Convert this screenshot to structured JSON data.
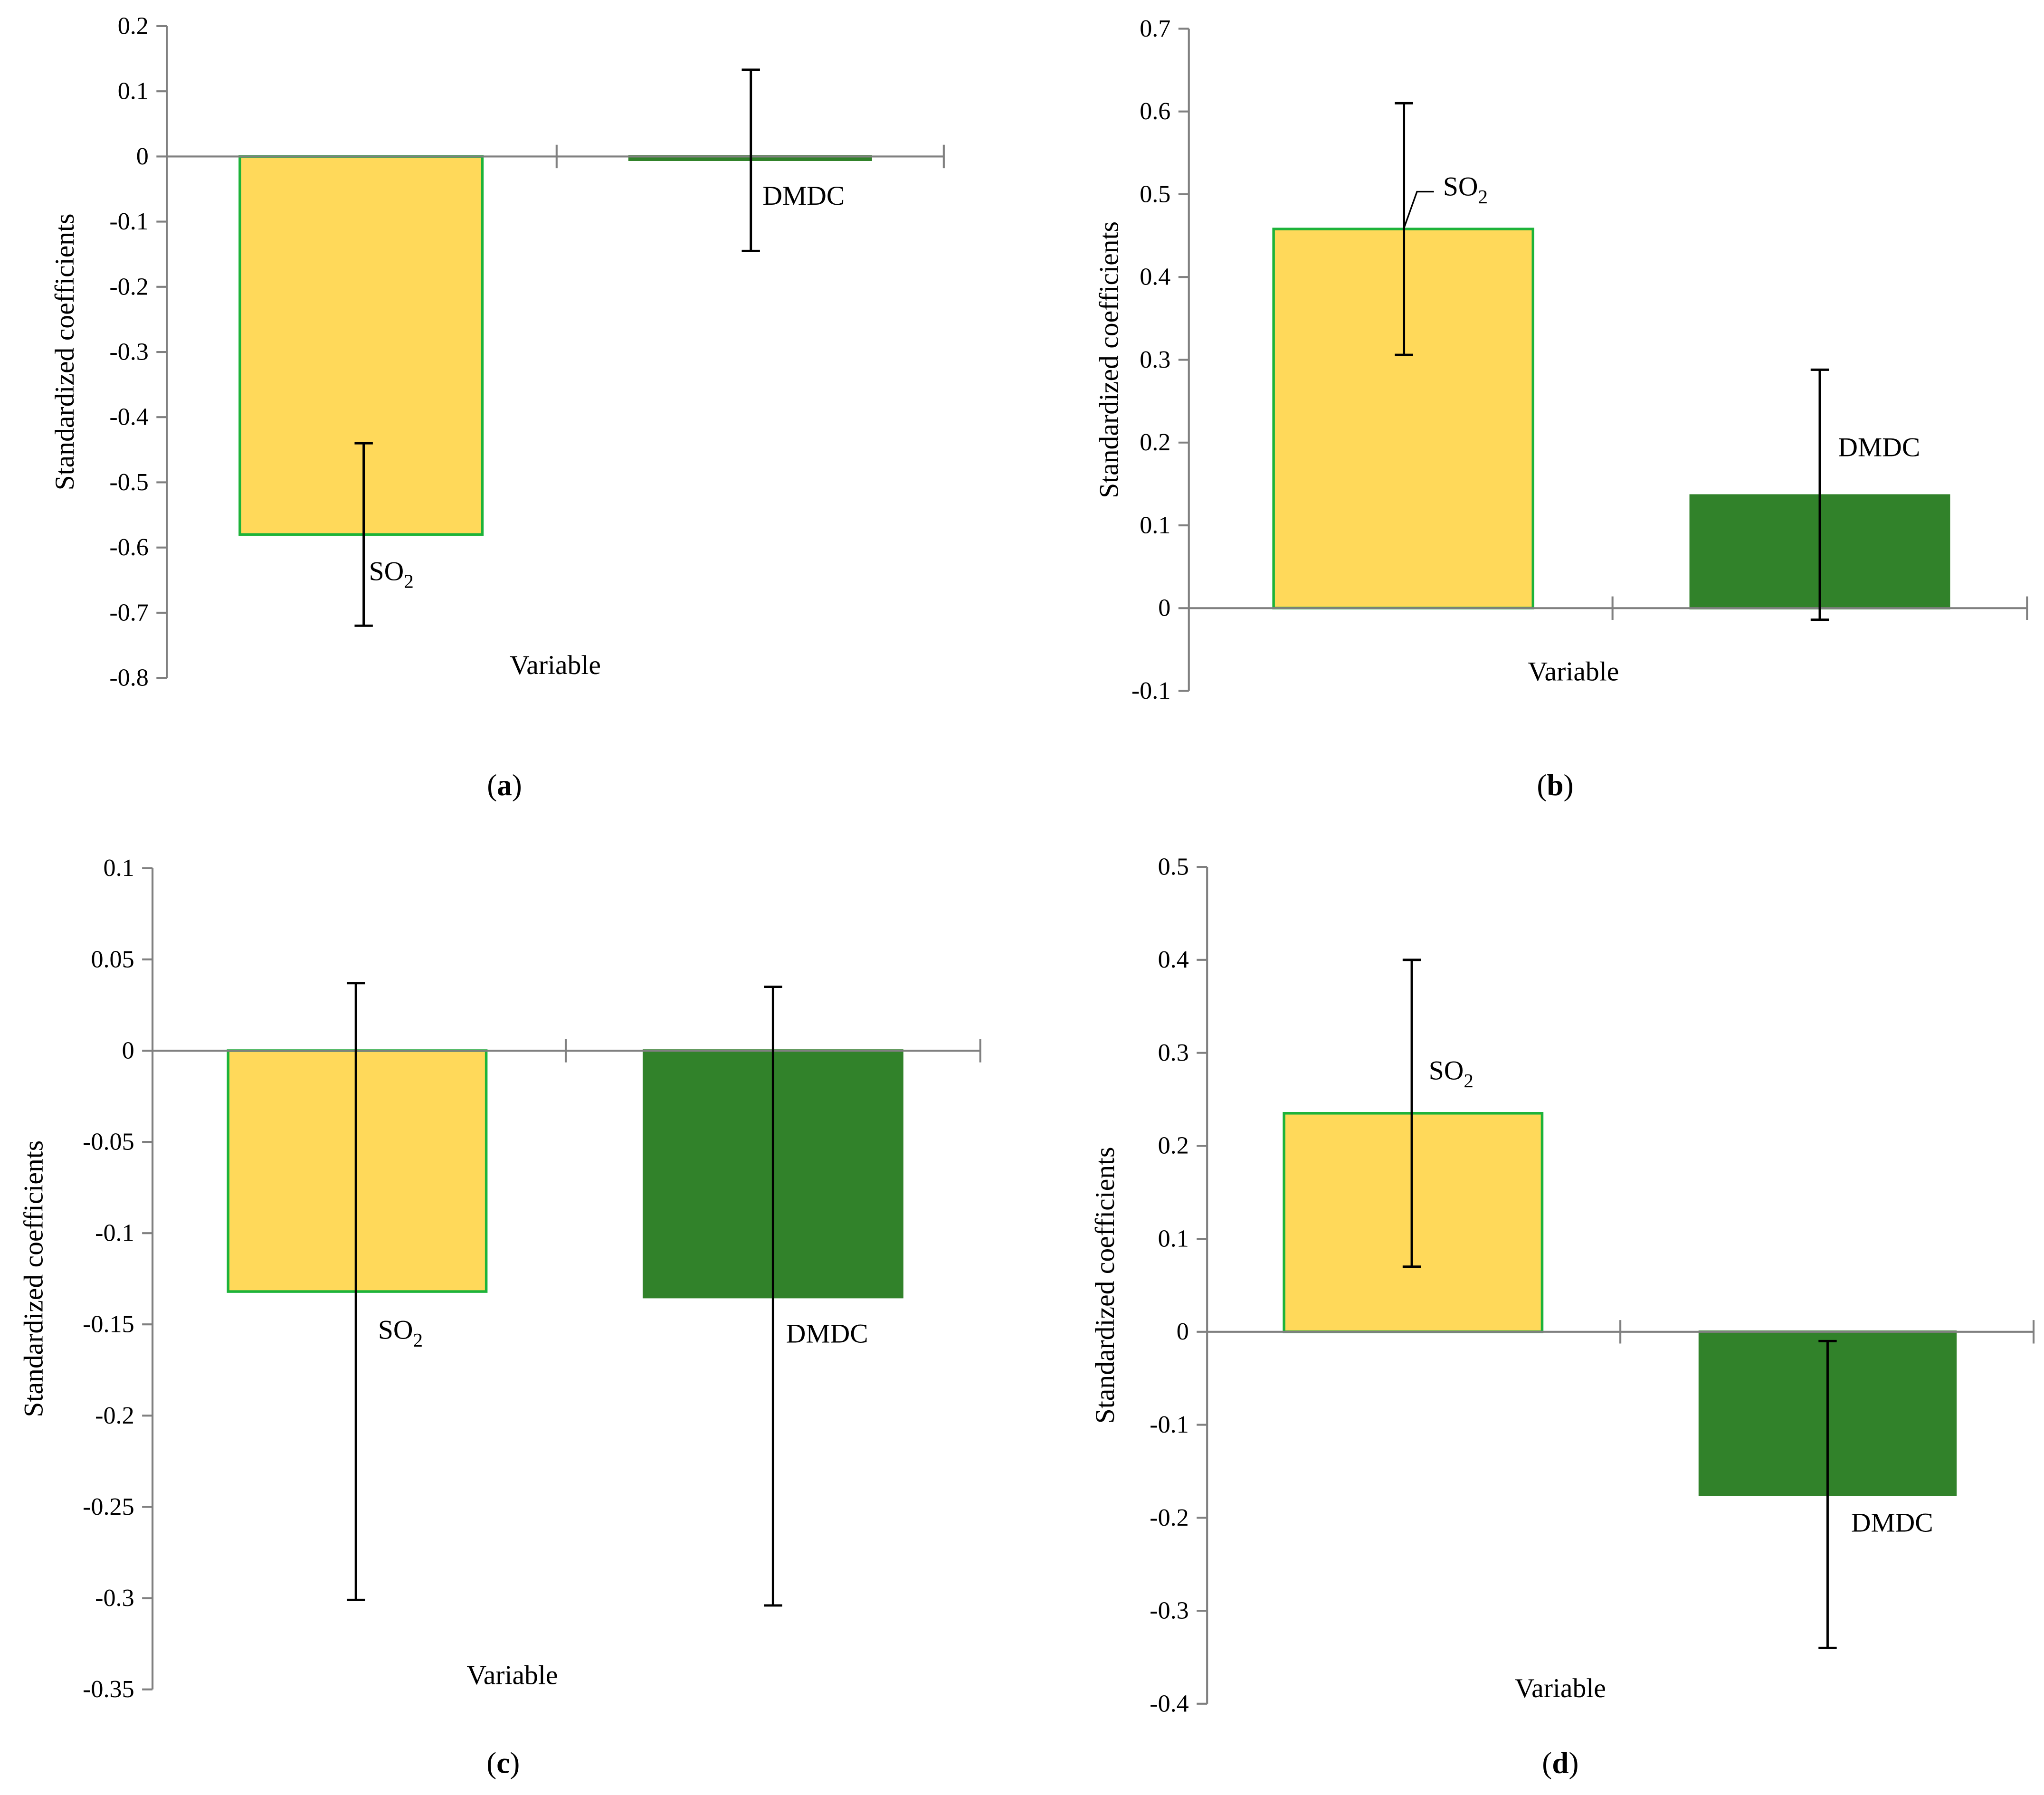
{
  "colors": {
    "so2_fill": "#FFD95A",
    "so2_stroke": "#1DB33A",
    "dmdc_fill": "#31822A",
    "dmdc_stroke": "#31822A",
    "axis": "#808080",
    "error": "#000000"
  },
  "chart_data": [
    {
      "type": "bar",
      "panel": "a",
      "caption_letter": "a",
      "xlabel": "Variable",
      "ylabel": "Standardized coefficients",
      "ylim": [
        -0.8,
        0.2
      ],
      "yticks": [
        0.2,
        0.1,
        0,
        -0.1,
        -0.2,
        -0.3,
        -0.4,
        -0.5,
        -0.6,
        -0.7,
        -0.8
      ],
      "ytick_labels": [
        "0.2",
        "0.1",
        "0",
        "-0.1",
        "-0.2",
        "-0.3",
        "-0.4",
        "-0.5",
        "-0.6",
        "-0.7",
        "-0.8"
      ],
      "bars": [
        {
          "name": "SO2",
          "label": "SO",
          "sub": "2",
          "value": -0.58,
          "err_low": -0.72,
          "err_high": -0.44
        },
        {
          "name": "DMDC",
          "label": "DMDC",
          "sub": "",
          "value": -0.005,
          "err_low": -0.145,
          "err_high": 0.133
        }
      ]
    },
    {
      "type": "bar",
      "panel": "b",
      "caption_letter": "b",
      "xlabel": "Variable",
      "ylabel": "Standardized coefficients",
      "ylim": [
        -0.1,
        0.7
      ],
      "yticks": [
        0.7,
        0.6,
        0.5,
        0.4,
        0.3,
        0.2,
        0.1,
        0,
        -0.1
      ],
      "ytick_labels": [
        "0.7",
        "0.6",
        "0.5",
        "0.4",
        "0.3",
        "0.2",
        "0.1",
        "0",
        "-0.1"
      ],
      "bars": [
        {
          "name": "SO2",
          "label": "SO",
          "sub": "2",
          "value": 0.458,
          "err_low": 0.306,
          "err_high": 0.61
        },
        {
          "name": "DMDC",
          "label": "DMDC",
          "sub": "",
          "value": 0.136,
          "err_low": -0.014,
          "err_high": 0.288
        }
      ]
    },
    {
      "type": "bar",
      "panel": "c",
      "caption_letter": "c",
      "xlabel": "Variable",
      "ylabel": "Standardized coefficients",
      "ylim": [
        -0.35,
        0.1
      ],
      "yticks": [
        0.1,
        0.05,
        0,
        -0.05,
        -0.1,
        -0.15,
        -0.2,
        -0.25,
        -0.3,
        -0.35
      ],
      "ytick_labels": [
        "0.1",
        "0.05",
        "0",
        "-0.05",
        "-0.1",
        "-0.15",
        "-0.2",
        "-0.25",
        "-0.3",
        "-0.35"
      ],
      "bars": [
        {
          "name": "SO2",
          "label": "SO",
          "sub": "2",
          "value": -0.132,
          "err_low": -0.301,
          "err_high": 0.037
        },
        {
          "name": "DMDC",
          "label": "DMDC",
          "sub": "",
          "value": -0.135,
          "err_low": -0.304,
          "err_high": 0.035
        }
      ]
    },
    {
      "type": "bar",
      "panel": "d",
      "caption_letter": "d",
      "xlabel": "Variable",
      "ylabel": "Standardized coefficients",
      "ylim": [
        -0.4,
        0.5
      ],
      "yticks": [
        0.5,
        0.4,
        0.3,
        0.2,
        0.1,
        0,
        -0.1,
        -0.2,
        -0.3,
        -0.4
      ],
      "ytick_labels": [
        "0.5",
        "0.4",
        "0.3",
        "0.2",
        "0.1",
        "0",
        "-0.1",
        "-0.2",
        "-0.3",
        "-0.4"
      ],
      "bars": [
        {
          "name": "SO2",
          "label": "SO",
          "sub": "2",
          "value": 0.235,
          "err_low": 0.07,
          "err_high": 0.4
        },
        {
          "name": "DMDC",
          "label": "DMDC",
          "sub": "",
          "value": -0.175,
          "err_low": -0.34,
          "err_high": -0.01
        }
      ]
    }
  ]
}
